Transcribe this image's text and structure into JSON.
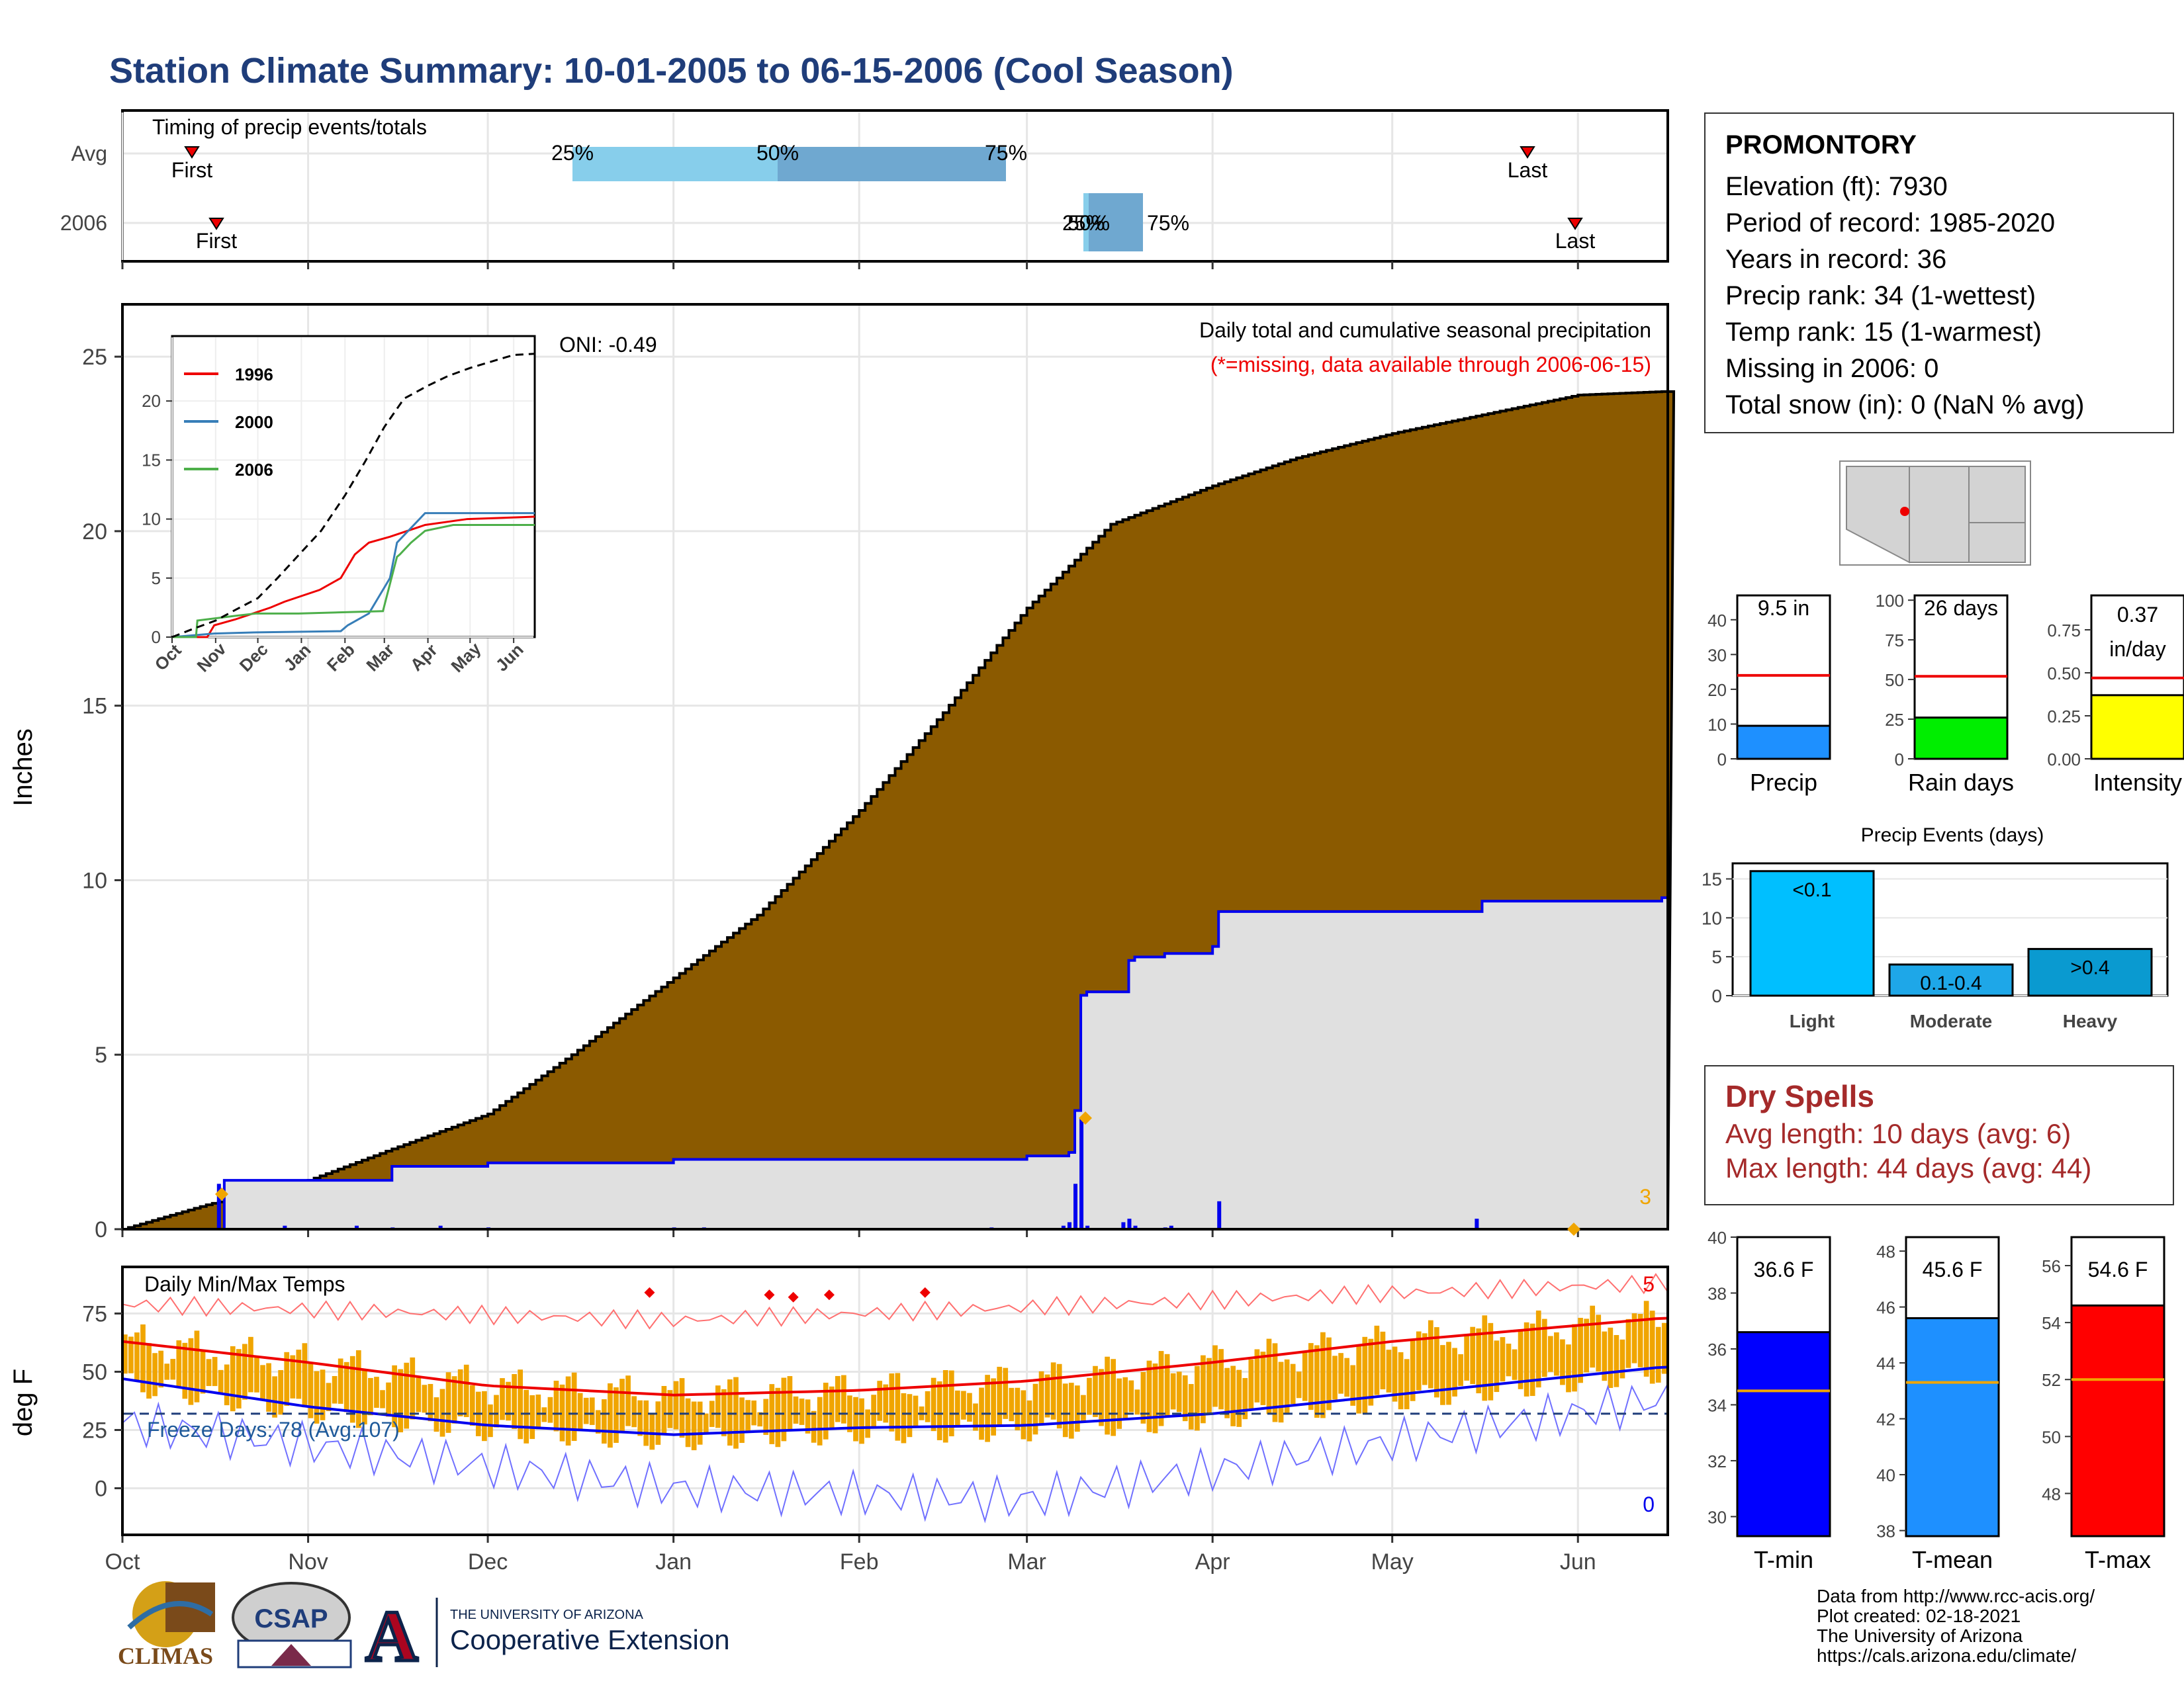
{
  "title": "Station Climate Summary: 10-01-2005 to 06-15-2006 (Cool Season)",
  "colors": {
    "title": "#1f3d7a",
    "brown": "#8b5a00",
    "grey": "#e0e0e0",
    "blue": "#0000ee",
    "red": "#ee0000",
    "orange": "#f0a500",
    "darkred": "#a52a2a"
  },
  "timing": {
    "label": "Timing of precip events/totals",
    "rows": [
      "Avg",
      "2006"
    ],
    "first": "First",
    "last": "Last",
    "avg_quartiles": {
      "q25": "25%",
      "q50": "50%",
      "q75": "75%"
    },
    "y2006_quartiles": {
      "q25": "25%",
      "q50": "50%",
      "q75": "75%"
    }
  },
  "station": {
    "name": "PROMONTORY",
    "lines": [
      "Elevation (ft): 7930",
      "Period of record: 1985-2020",
      "Years in record: 36",
      "Precip rank: 34 (1-wettest)",
      "Temp rank: 15 (1-warmest)",
      "Missing in 2006: 0",
      "Total snow (in): 0 (NaN % avg)"
    ]
  },
  "main_panel": {
    "ylabel": "Inches",
    "title": "Daily total and cumulative seasonal precipitation",
    "subtitle": "(*=missing, data available through 2006-06-15)",
    "oni": "ONI: -0.49",
    "y_ticks": [
      "0",
      "5",
      "10",
      "15",
      "20",
      "25"
    ],
    "corner_count": "3"
  },
  "inset": {
    "legend": [
      "1996",
      "2000",
      "2006"
    ],
    "y_ticks": [
      "0",
      "5",
      "10",
      "15",
      "20"
    ],
    "x_ticks": [
      "Oct",
      "Nov",
      "Dec",
      "Jan",
      "Feb",
      "Mar",
      "Apr",
      "May",
      "Jun"
    ]
  },
  "temp_panel": {
    "title": "Daily Min/Max Temps",
    "ylabel": "deg F",
    "y_ticks": [
      "0",
      "25",
      "50",
      "75"
    ],
    "freeze": "Freeze Days: 78 (Avg:107)",
    "count_top": "5",
    "count_bottom": "0"
  },
  "x_axis": [
    "Oct",
    "Nov",
    "Dec",
    "Jan",
    "Feb",
    "Mar",
    "Apr",
    "May",
    "Jun"
  ],
  "gauges": {
    "precip": {
      "label": "Precip",
      "value_text": "9.5 in",
      "ticks": [
        "0",
        "10",
        "20",
        "30",
        "40"
      ]
    },
    "raindays": {
      "label": "Rain days",
      "value_text": "26 days",
      "ticks": [
        "0",
        "25",
        "50",
        "75",
        "100"
      ]
    },
    "intensity": {
      "label": "Intensity",
      "value_text": "0.37",
      "value_text2": "in/day",
      "ticks": [
        "0.00",
        "0.25",
        "0.50",
        "0.75"
      ]
    }
  },
  "events": {
    "title": "Precip Events (days)",
    "labels": [
      "Light",
      "Moderate",
      "Heavy"
    ],
    "bar_text": [
      "<0.1",
      "0.1-0.4",
      ">0.4"
    ],
    "ticks": [
      "0",
      "5",
      "10",
      "15"
    ]
  },
  "dry_spells": {
    "title": "Dry Spells",
    "avg": "Avg length: 10 days (avg: 6)",
    "max": "Max length: 44 days (avg: 44)"
  },
  "temp_gauges": {
    "tmin": {
      "label": "T-min",
      "value_text": "36.6 F",
      "ticks": [
        "30",
        "32",
        "34",
        "36",
        "38",
        "40"
      ]
    },
    "tmean": {
      "label": "T-mean",
      "value_text": "45.6 F",
      "ticks": [
        "38",
        "40",
        "42",
        "44",
        "46",
        "48"
      ]
    },
    "tmax": {
      "label": "T-max",
      "value_text": "54.6 F",
      "ticks": [
        "48",
        "50",
        "52",
        "54",
        "56"
      ]
    }
  },
  "footer": {
    "lines": [
      "Data from http://www.rcc-acis.org/",
      "Plot created: 02-18-2021",
      "The University of Arizona",
      "https://cals.arizona.edu/climate/"
    ],
    "logo_climas": "CLIMAS",
    "logo_csap": "CSAP",
    "logo_ua_small": "THE UNIVERSITY OF ARIZONA",
    "logo_ua_big": "Cooperative Extension"
  },
  "chart_data": [
    {
      "type": "area",
      "title": "Daily total and cumulative seasonal precipitation",
      "ylabel": "Inches",
      "ylim": [
        0,
        26.5
      ],
      "x_range": [
        "2005-10-01",
        "2006-06-15"
      ],
      "avg_cumulative": {
        "x": [
          "2005-10-01",
          "2005-10-15",
          "2005-11-01",
          "2005-11-15",
          "2005-12-01",
          "2005-12-15",
          "2006-01-01",
          "2006-01-15",
          "2006-02-01",
          "2006-02-15",
          "2006-03-01",
          "2006-03-15",
          "2006-04-01",
          "2006-04-15",
          "2006-05-01",
          "2006-05-15",
          "2006-06-01",
          "2006-06-15"
        ],
        "y": [
          0,
          0.7,
          1.4,
          2.3,
          3.3,
          5.0,
          7.2,
          9.0,
          12.0,
          14.8,
          17.8,
          20.2,
          21.3,
          22.1,
          22.8,
          23.3,
          23.9,
          24.0
        ]
      },
      "cumulative_2006": {
        "x": [
          "2005-10-01",
          "2005-10-17",
          "2005-10-18",
          "2005-11-05",
          "2005-11-15",
          "2005-12-01",
          "2006-01-01",
          "2006-02-01",
          "2006-03-01",
          "2006-03-08",
          "2006-03-09",
          "2006-03-10",
          "2006-03-11",
          "2006-03-15",
          "2006-03-18",
          "2006-03-19",
          "2006-03-24",
          "2006-04-01",
          "2006-04-02",
          "2006-05-15",
          "2006-05-16",
          "2006-06-15"
        ],
        "y": [
          0,
          0,
          1.4,
          1.4,
          1.8,
          1.9,
          2.0,
          2.0,
          2.1,
          2.2,
          3.4,
          6.7,
          6.8,
          6.8,
          7.7,
          7.8,
          7.9,
          8.1,
          9.1,
          9.1,
          9.4,
          9.5
        ]
      },
      "daily_2006": {
        "x": [
          "2005-10-17",
          "2005-10-28",
          "2005-11-09",
          "2005-11-15",
          "2005-11-23",
          "2005-12-01",
          "2006-01-01",
          "2006-01-06",
          "2006-02-23",
          "2006-03-07",
          "2006-03-08",
          "2006-03-09",
          "2006-03-10",
          "2006-03-11",
          "2006-03-17",
          "2006-03-18",
          "2006-03-19",
          "2006-03-24",
          "2006-03-25",
          "2006-04-02",
          "2006-05-15"
        ],
        "y": [
          1.3,
          0.1,
          0.1,
          0.05,
          0.1,
          0.05,
          0.05,
          0.05,
          0.05,
          0.1,
          0.2,
          1.3,
          3.2,
          0.1,
          0.2,
          0.3,
          0.1,
          0.05,
          0.1,
          0.8,
          0.3
        ]
      }
    },
    {
      "type": "line",
      "title": "",
      "ylim": [
        0,
        25
      ],
      "x_range": [
        "Oct",
        "Jun"
      ],
      "series": [
        {
          "name": "1996",
          "x": [
            0,
            25,
            30,
            45,
            70,
            80,
            105,
            120,
            130,
            140,
            155,
            180,
            210,
            258
          ],
          "y": [
            0,
            0,
            1,
            1.5,
            2.5,
            3,
            4,
            5,
            7,
            8,
            8.5,
            9.5,
            10,
            10.2
          ]
        },
        {
          "name": "2000",
          "x": [
            0,
            30,
            60,
            120,
            125,
            140,
            155,
            160,
            180,
            210,
            258
          ],
          "y": [
            0,
            0.3,
            0.4,
            0.5,
            1,
            2,
            5,
            8,
            10.5,
            10.5,
            10.5
          ]
        },
        {
          "name": "2006",
          "x": [
            0,
            17,
            18,
            45,
            60,
            90,
            150,
            160,
            162,
            170,
            180,
            200,
            258
          ],
          "y": [
            0,
            0,
            1.4,
            1.8,
            2.0,
            2.0,
            2.2,
            6.8,
            7.0,
            8,
            9,
            9.5,
            9.5
          ]
        },
        {
          "name": "avg",
          "x": [
            0,
            15,
            31,
            45,
            61,
            75,
            92,
            106,
            123,
            137,
            151,
            165,
            182,
            196,
            212,
            226,
            243,
            258
          ],
          "y": [
            0,
            0.7,
            1.4,
            2.3,
            3.3,
            5.0,
            7.2,
            9.0,
            12.0,
            14.8,
            17.8,
            20.2,
            21.3,
            22.1,
            22.8,
            23.3,
            23.9,
            24.0
          ]
        }
      ]
    },
    {
      "type": "line",
      "title": "Daily Min/Max Temps",
      "ylabel": "deg F",
      "ylim": [
        -20,
        95
      ],
      "series": [
        {
          "name": "avg max",
          "x": [
            "2005-10-01",
            "2005-11-01",
            "2005-12-01",
            "2006-01-01",
            "2006-02-01",
            "2006-03-01",
            "2006-04-01",
            "2006-05-01",
            "2006-06-15"
          ],
          "y": [
            63,
            54,
            44,
            40,
            42,
            46,
            54,
            63,
            73
          ]
        },
        {
          "name": "avg min",
          "x": [
            "2005-10-01",
            "2005-11-01",
            "2005-12-01",
            "2006-01-01",
            "2006-02-01",
            "2006-03-01",
            "2006-04-01",
            "2006-05-01",
            "2006-06-15"
          ],
          "y": [
            47,
            35,
            27,
            23,
            26,
            27,
            32,
            40,
            52
          ]
        },
        {
          "name": "record max",
          "x": [
            "2005-10-01",
            "2006-01-01",
            "2006-06-15"
          ],
          "y": [
            79,
            72,
            88
          ]
        },
        {
          "name": "record min",
          "x": [
            "2005-10-01",
            "2006-01-01",
            "2006-03-01",
            "2006-06-15"
          ],
          "y": [
            28,
            0,
            -5,
            38
          ]
        }
      ],
      "freeze_line": 32
    },
    {
      "type": "bar",
      "title": "",
      "categories": [
        "Precip",
        "Rain days",
        "Intensity"
      ],
      "values": [
        9.5,
        26,
        0.37
      ],
      "avg_lines": [
        24,
        52,
        0.47
      ],
      "ylims": [
        [
          0,
          47
        ],
        [
          0,
          103
        ],
        [
          0,
          0.95
        ]
      ]
    },
    {
      "type": "bar",
      "title": "Precip Events (days)",
      "categories": [
        "Light",
        "Moderate",
        "Heavy"
      ],
      "values": [
        16,
        4,
        6
      ],
      "ylim": [
        0,
        17
      ]
    },
    {
      "type": "bar",
      "title": "",
      "categories": [
        "T-min",
        "T-mean",
        "T-max"
      ],
      "values": [
        36.6,
        45.6,
        54.6
      ],
      "avg_lines": [
        34.5,
        43.3,
        52.0
      ],
      "ylims": [
        [
          29.3,
          40
        ],
        [
          37.8,
          48.5
        ],
        [
          46.5,
          57
        ]
      ]
    }
  ]
}
